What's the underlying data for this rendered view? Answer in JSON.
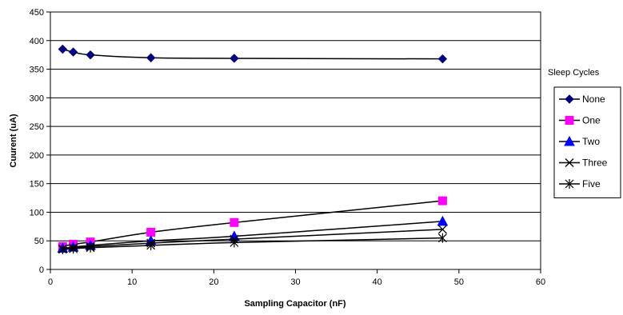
{
  "chart_data": {
    "type": "line",
    "title": "",
    "xlabel": "Sampling Capacitor (nF)",
    "ylabel": "Cuurent (uA)",
    "xlim": [
      0,
      60
    ],
    "ylim": [
      0,
      450
    ],
    "xticks": [
      "0",
      "10",
      "20",
      "30",
      "40",
      "50",
      "60"
    ],
    "yticks": [
      "0",
      "50",
      "100",
      "150",
      "200",
      "250",
      "300",
      "350",
      "400",
      "450"
    ],
    "grid": "horizontal",
    "legend_title": "Sleep Cycles",
    "legend_position": "right",
    "series": [
      {
        "name": "None",
        "marker": "diamond",
        "color": "#000080",
        "x": [
          1.5,
          2.8,
          4.9,
          12.3,
          22.5,
          48
        ],
        "y": [
          385,
          380,
          375,
          370,
          369,
          368
        ]
      },
      {
        "name": "One",
        "marker": "square",
        "color": "#ff00ff",
        "x": [
          1.5,
          2.8,
          4.9,
          12.3,
          22.5,
          48
        ],
        "y": [
          40,
          44,
          48,
          65,
          82,
          120
        ]
      },
      {
        "name": "Two",
        "marker": "triangle",
        "color": "#0000ff",
        "x": [
          1.5,
          2.8,
          4.9,
          12.3,
          22.5,
          48
        ],
        "y": [
          37,
          39,
          42,
          50,
          58,
          84
        ]
      },
      {
        "name": "Three",
        "marker": "x",
        "color": "#000000",
        "x": [
          1.5,
          2.8,
          4.9,
          12.3,
          22.5,
          48
        ],
        "y": [
          36,
          38,
          40,
          46,
          53,
          70
        ]
      },
      {
        "name": "Five",
        "marker": "star",
        "color": "#000000",
        "x": [
          1.5,
          2.8,
          4.9,
          12.3,
          22.5,
          48
        ],
        "y": [
          35,
          36,
          38,
          42,
          47,
          55
        ]
      }
    ]
  }
}
